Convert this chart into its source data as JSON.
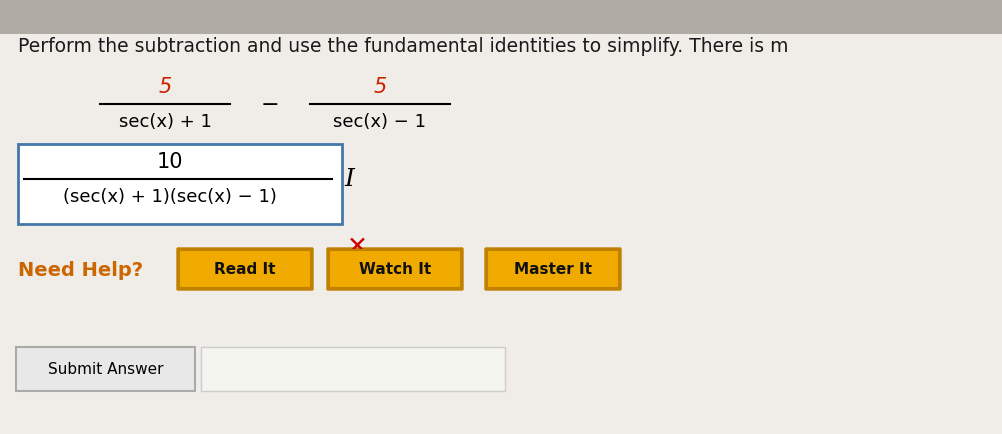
{
  "bg_color": "#c8c4bc",
  "panel_color": "#f0ede8",
  "title_text": "Perform the subtraction and use the fundamental identities to simplify. There is m",
  "title_fontsize": 13.5,
  "title_color": "#1a1a1a",
  "frac1_num": "5",
  "frac1_den": "sec(x) + 1",
  "frac2_num": "5",
  "frac2_den": "sec(x) − 1",
  "minus_sign": "−",
  "answer_num": "10",
  "answer_den": "(sec(x) + 1)(sec(x) − 1)",
  "answer_box_edgecolor": "#4477aa",
  "answer_box_facecolor": "#ffffff",
  "red_x_color": "#cc0000",
  "need_help_color": "#cc6600",
  "need_help_text": "Need Help?",
  "btn_labels": [
    "Read It",
    "Watch It",
    "Master It"
  ],
  "btn_facecolor": "#f0aa00",
  "btn_edgecolor": "#c08000",
  "btn_text_color": "#111111",
  "submit_text": "Submit Answer",
  "submit_box_edgecolor": "#aaaaaa",
  "submit_box_facecolor": "#e8e8e8",
  "input_box_facecolor": "#f5f5f0",
  "input_box_edgecolor": "#cccccc",
  "cursor_symbol": "I",
  "red_x_symbol": "✕"
}
